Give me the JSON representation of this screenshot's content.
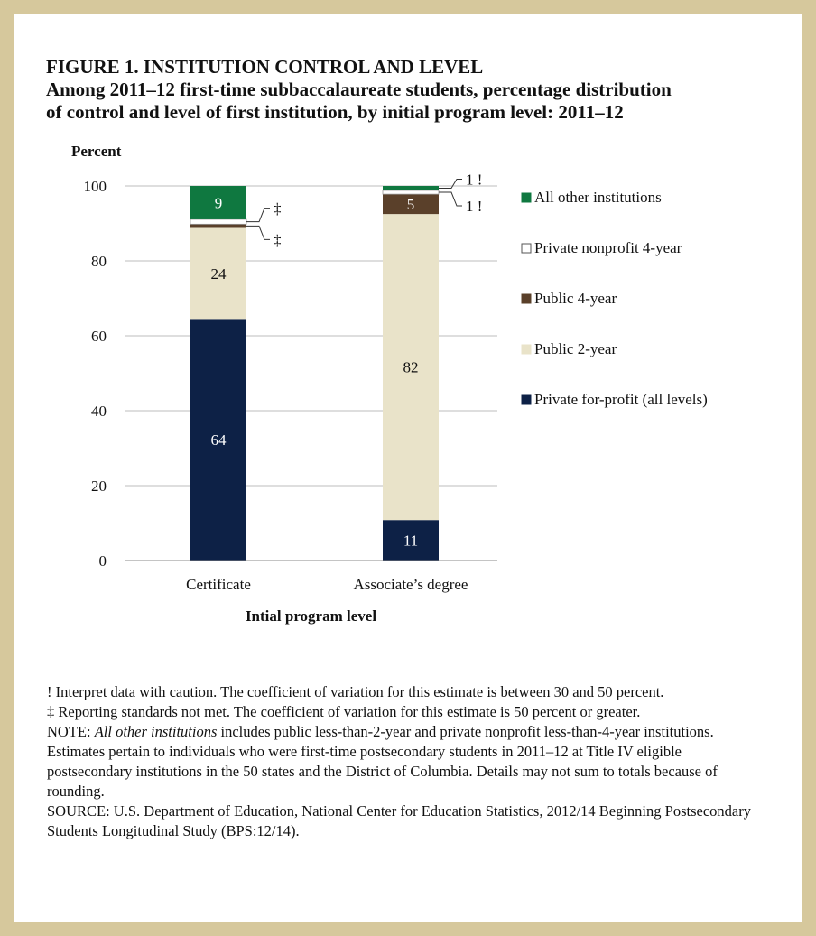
{
  "figure": {
    "title": "FIGURE  1. INSTITUTION CONTROL AND LEVEL",
    "subtitle_line1": "Among 2011–12 first-time subbaccalaureate students, percentage distribution",
    "subtitle_line2": "of control and level of first institution, by initial program level: 2011–12"
  },
  "chart_data": {
    "type": "bar",
    "stacked": true,
    "orientation": "vertical",
    "categories": [
      "Certificate",
      "Associate’s degree"
    ],
    "xlabel": "Intial program level",
    "ylabel": "Percent",
    "ylim": [
      0,
      100
    ],
    "yticks": [
      "0",
      "20",
      "40",
      "60",
      "80",
      "100"
    ],
    "grid": true,
    "legend_position": "right",
    "series": [
      {
        "name": "Private for-profit (all levels)",
        "color": "#0d2146",
        "values": [
          64.5,
          10.8
        ],
        "labels": [
          "64",
          "11"
        ],
        "label_color": "#ffffff"
      },
      {
        "name": "Public 2-year",
        "color": "#e9e3c9",
        "values": [
          24.3,
          81.7
        ],
        "labels": [
          "24",
          "82"
        ],
        "label_color": "#111111"
      },
      {
        "name": "Public 4-year",
        "color": "#5a402a",
        "values": [
          1.0,
          5.3
        ],
        "labels": [
          "‡",
          "5"
        ],
        "label_color": "#ffffff"
      },
      {
        "name": "Private nonprofit 4-year",
        "color": "#ffffff",
        "values": [
          1.3,
          1.0
        ],
        "labels": [
          "‡",
          "1 !"
        ],
        "label_color": "#111111"
      },
      {
        "name": "All other institutions",
        "color": "#0f7840",
        "values": [
          8.9,
          1.2
        ],
        "labels": [
          "9",
          "1 !"
        ],
        "label_color": "#ffffff"
      }
    ],
    "callouts": [
      {
        "category": 0,
        "series": 3,
        "text": "‡"
      },
      {
        "category": 0,
        "series": 2,
        "text": "‡"
      },
      {
        "category": 1,
        "series": 4,
        "text": "1 !"
      },
      {
        "category": 1,
        "series": 3,
        "text": "1 !"
      }
    ]
  },
  "notes": {
    "caution": "! Interpret data with caution. The coefficient of variation for this estimate is between 30 and 50 percent.",
    "reporting": "‡ Reporting standards not met. The coefficient of variation for this estimate is 50 percent or greater.",
    "note_prefix": "NOTE: ",
    "note_italic": "All other institutions",
    "note_rest": " includes public less-than-2-year and private nonprofit less-than-4-year institutions. Estimates pertain to individuals who were first-time postsecondary students in 2011–12 at Title IV eligible postsecondary institutions in the 50 states and the District of Columbia. Details may not sum to totals because of rounding.",
    "source": "SOURCE: U.S. Department of Education, National Center for Education Statistics, 2012/14 Beginning Postsecondary Students Longitudinal Study (BPS:12/14)."
  }
}
